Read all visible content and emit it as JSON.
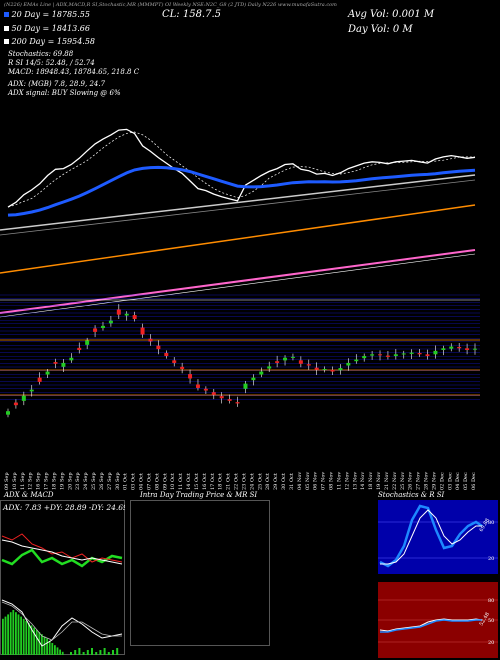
{
  "header": {
    "top_line": "(N226) EMAs Line | ADX,MACD,R SI,Stochastic,MR (MMMPT) OI Weekly NSE:N2C_G8 (2 JTD) Daily N226 www.munafaSutra.com",
    "clv": "CL: 158.7.5",
    "avg_vol": "Avg Vol: 0.001 M",
    "day_vol": "Day Vol: 0   M",
    "ema20": "20  Day = 18785.55",
    "ema50": "50  Day = 18413.66",
    "ema200": "200  Day = 15954.58",
    "stoch": "Stochastics: 69.88",
    "rsi": "R                  SI 14/5: 52.48,  / 52.74",
    "macd": "MACD: 18948.43,  18784.65,  218.8  C",
    "adx": "ADX:                              (MGB) 7.8,  28.9,  24.7",
    "adx_signal": "ADX  signal:                              BUY Slowing @ 6%"
  },
  "colors": {
    "price_line": "#ffffff",
    "ema20": "#1e5bff",
    "ema50": "#cccccc",
    "ema100": "#ff8c00",
    "ema200": "#ff66cc",
    "up_candle": "#22cc22",
    "down_candle": "#ee2222",
    "orange_line": "#ff8c00",
    "blue_grid": "#1a1aff"
  },
  "date_labels": [
    "09 Sep",
    "10 Sep",
    "11 Sep",
    "12 Sep",
    "16 Sep",
    "17 Sep",
    "18 Sep",
    "19 Sep",
    "20 Sep",
    "23 Sep",
    "24 Sep",
    "25 Sep",
    "26 Sep",
    "27 Sep",
    "30 Sep",
    "01 Oct",
    "03 Oct",
    "04 Oct",
    "07 Oct",
    "08 Oct",
    "09 Oct",
    "10 Oct",
    "11 Oct",
    "14 Oct",
    "15 Oct",
    "16 Oct",
    "17 Oct",
    "18 Oct",
    "21 Oct",
    "22 Oct",
    "23 Oct",
    "24 Oct",
    "25 Oct",
    "28 Oct",
    "29 Oct",
    "30 Oct",
    "31 Oct",
    "04 Nov",
    "05 Nov",
    "06 Nov",
    "07 Nov",
    "08 Nov",
    "11 Nov",
    "12 Nov",
    "13 Nov",
    "14 Nov",
    "18 Nov",
    "19 Nov",
    "21 Nov",
    "22 Nov",
    "25 Nov",
    "26 Nov",
    "27 Nov",
    "28 Nov",
    "29 Nov",
    "02 Dec",
    "03 Dec",
    "04 Dec",
    "05 Dec",
    "06 Dec"
  ],
  "panels": {
    "adx_title": "ADX  & MACD",
    "adx_readout": "ADX: 7.83  +DY: 28.89  -DY: 24.69",
    "intraday_title": "Intra  Day  Trading  Price   & MR                    SI",
    "stoch_title": "Stochastics & R                    SI",
    "stoch_levels": [
      "80",
      "20"
    ],
    "rsi_levels": [
      "80",
      "50",
      "20"
    ],
    "stoch_value": "69.88",
    "rsi_value": "52.48"
  },
  "chart_data": {
    "type": "candlestick",
    "note_series": "close",
    "closes": [
      18060,
      18130,
      18240,
      18310,
      18400,
      18520,
      18610,
      18620,
      18680,
      18770,
      18880,
      18980,
      19050,
      19110,
      19180,
      19190,
      19130,
      18950,
      18870,
      18780,
      18700,
      18620,
      18550,
      18440,
      18330,
      18300,
      18250,
      18210,
      18180,
      18150,
      18380,
      18450,
      18520,
      18580,
      18620,
      18680,
      18690,
      18610,
      18590,
      18540,
      18550,
      18520,
      18560,
      18620,
      18660,
      18700,
      18720,
      18710,
      18690,
      18720,
      18730,
      18740,
      18720,
      18700,
      18760,
      18790,
      18810,
      18790,
      18770,
      18785
    ],
    "ema_labels": [
      "20 Day",
      "50 Day",
      "100 Day",
      "200 Day"
    ]
  }
}
